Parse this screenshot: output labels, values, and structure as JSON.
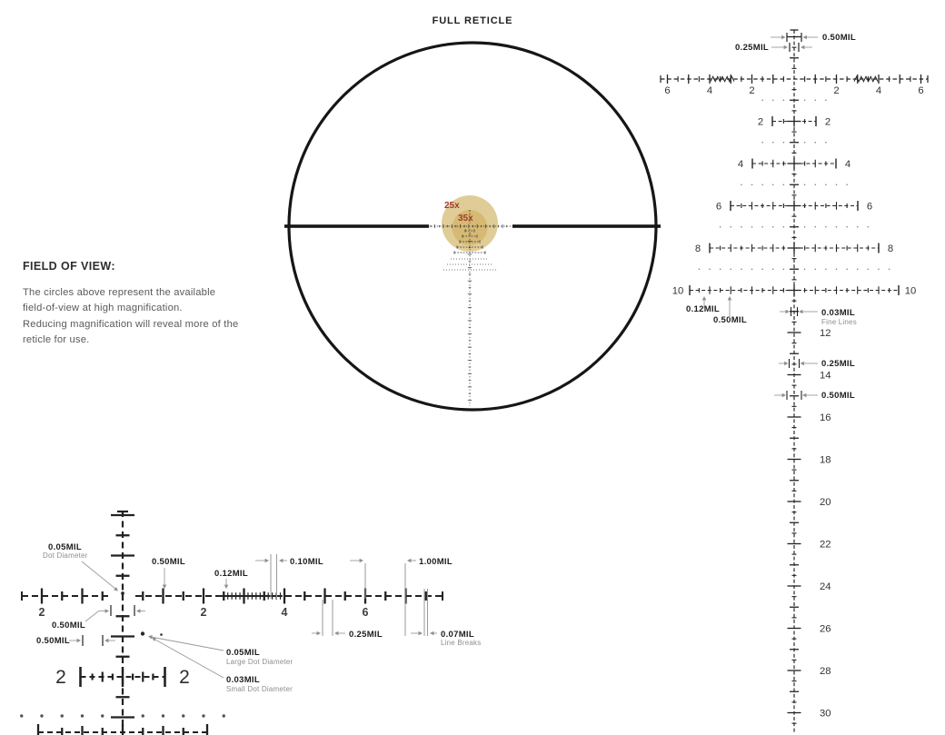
{
  "page_title": "FULL RETICLE",
  "field_of_view": {
    "heading": "FIELD OF VIEW:",
    "lines": [
      "The circles above represent the available",
      "field-of-view at high magnification.",
      "Reducing magnification will reveal more of the",
      "reticle for use."
    ]
  },
  "center_reticle": {
    "magnification_outer": "25x",
    "magnification_inner": "35x"
  },
  "right_detail": {
    "h_axis_labels": [
      "6",
      "4",
      "2",
      "2",
      "4",
      "6"
    ],
    "tree_row_labels": [
      "2",
      "4",
      "6",
      "8",
      "10"
    ],
    "drop_labels": [
      "12",
      "14",
      "16",
      "18",
      "20",
      "22",
      "24",
      "26",
      "28",
      "30"
    ],
    "callouts": {
      "top_width": "0.50MIL",
      "top_inner_width": "0.25MIL",
      "row10_tick_width": "0.12MIL",
      "row10_tick_height": "0.50MIL",
      "fine_line_width": "0.03MIL",
      "fine_line_sub": "Fine Lines",
      "mid_tick_small": "0.25MIL",
      "mid_tick_wide": "0.50MIL"
    }
  },
  "bottom_detail": {
    "h_axis_labels": [
      "2",
      "2",
      "4",
      "6"
    ],
    "big_row_labels": [
      "2",
      "2"
    ],
    "callouts": {
      "center_dot": "0.05MIL",
      "center_dot_sub": "Dot Diameter",
      "tall_tick": "0.50MIL",
      "tick_width": "0.12MIL",
      "fine_gap": "0.10MIL",
      "one_mil": "1.00MIL",
      "quarter_gap": "0.25MIL",
      "line_break": "0.07MIL",
      "line_break_sub": "Line Breaks",
      "half_mil_upper": "0.50MIL",
      "half_mil_lower": "0.50MIL",
      "large_dot": "0.05MIL",
      "large_dot_sub": "Large Dot Diameter",
      "small_dot": "0.03MIL",
      "small_dot_sub": "Small Dot Diameter"
    }
  },
  "colors": {
    "ink": "#1f1f1f",
    "callout_gray": "#9a9a9a",
    "fov_outer_circle": "#e0cc96",
    "fov_inner_circle": "#d6ba74",
    "magnification_label": "#a33a2e"
  }
}
